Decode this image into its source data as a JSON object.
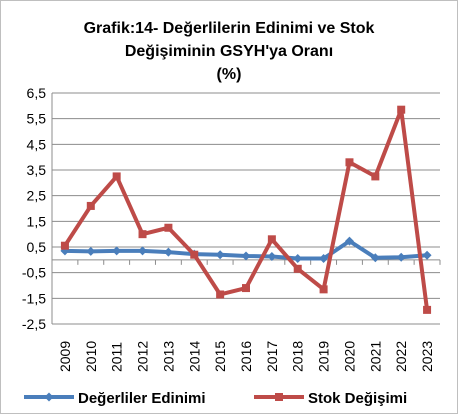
{
  "chart_data": {
    "type": "line",
    "title_lines": [
      "Grafik:14- Değerlilerin Edinimi ve Stok",
      "Değişiminin GSYH'ya Oranı",
      "(%)"
    ],
    "x": [
      "2009",
      "2010",
      "2011",
      "2012",
      "2013",
      "2014",
      "2015",
      "2016",
      "2017",
      "2018",
      "2019",
      "2020",
      "2021",
      "2022",
      "2023"
    ],
    "y_ticks": [
      "6,5",
      "5,5",
      "4,5",
      "3,5",
      "2,5",
      "1,5",
      "0,5",
      "-0,5",
      "-1,5",
      "-2,5"
    ],
    "ylim": [
      -2.5,
      6.5
    ],
    "y_gridlines": true,
    "legend_position": "bottom",
    "series": [
      {
        "name": "Değerliler Edinimi",
        "color": "#4a7ebb",
        "marker": "diamond",
        "values": [
          0.35,
          0.33,
          0.35,
          0.35,
          0.3,
          0.22,
          0.2,
          0.15,
          0.13,
          0.05,
          0.05,
          0.73,
          0.08,
          0.1,
          0.18
        ]
      },
      {
        "name": "Stok Değişimi",
        "color": "#be4b48",
        "marker": "square",
        "values": [
          0.55,
          2.1,
          3.25,
          1.0,
          1.25,
          0.2,
          -1.35,
          -1.1,
          0.8,
          -0.35,
          -1.15,
          3.8,
          3.25,
          5.85,
          -1.95
        ]
      }
    ]
  }
}
